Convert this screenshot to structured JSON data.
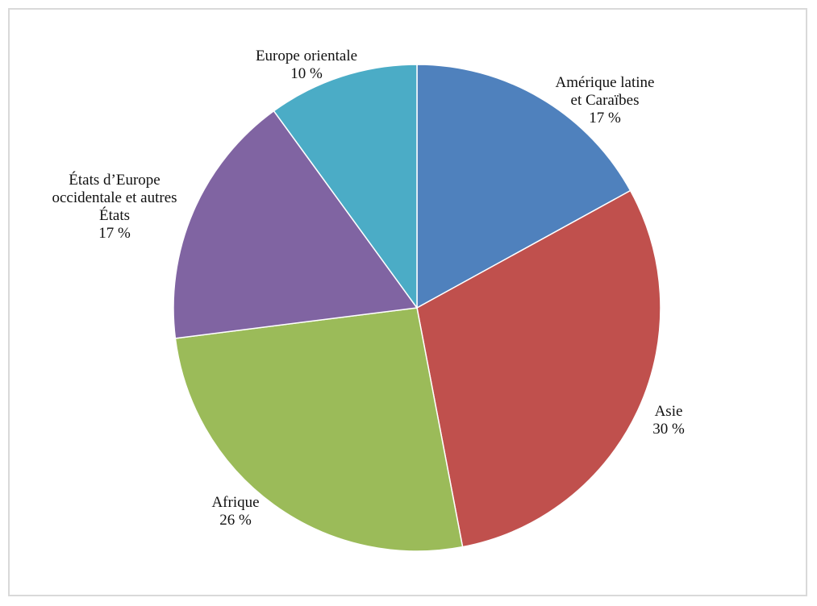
{
  "chart_data": {
    "type": "pie",
    "start_angle_deg": 0,
    "direction": "clockwise",
    "slices": [
      {
        "label_lines": [
          "Amérique latine",
          "et  Caraïbes"
        ],
        "pct_label": "17 %",
        "value": 17,
        "color": "#4f81bd"
      },
      {
        "label_lines": [
          "Asie"
        ],
        "pct_label": "30 %",
        "value": 30,
        "color": "#c0504d"
      },
      {
        "label_lines": [
          "Afrique"
        ],
        "pct_label": "26 %",
        "value": 26,
        "color": "#9bbb59"
      },
      {
        "label_lines": [
          "États d’Europe",
          "occidentale et autres",
          "États"
        ],
        "pct_label": "17 %",
        "value": 17,
        "color": "#8064a2"
      },
      {
        "label_lines": [
          "Europe orientale"
        ],
        "pct_label": "10 %",
        "value": 10,
        "color": "#4bacc6"
      }
    ],
    "legend": "none",
    "data_labels": "outside"
  }
}
